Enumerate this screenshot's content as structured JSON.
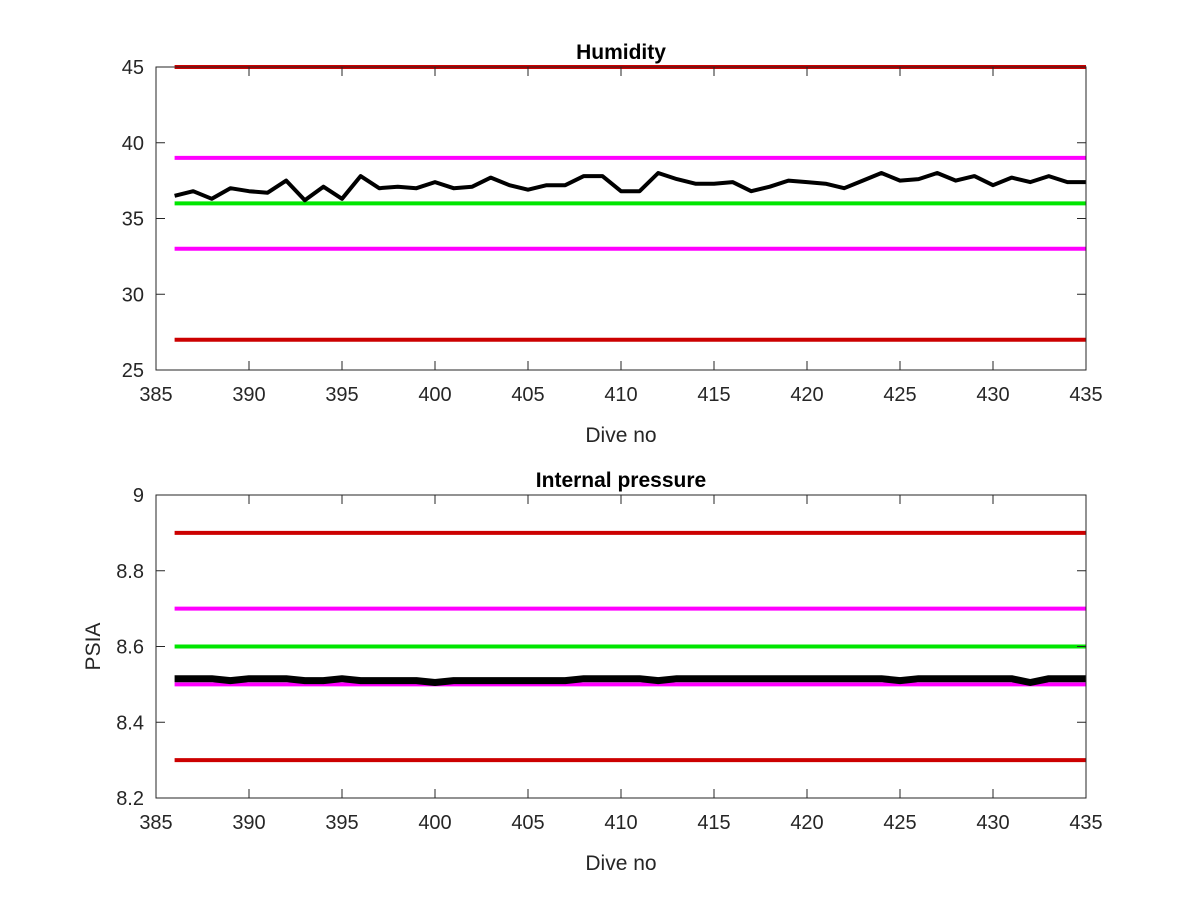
{
  "chart_data": [
    {
      "type": "line",
      "title": "Humidity",
      "xlabel": "Dive no",
      "ylabel": "",
      "xlim": [
        385,
        435
      ],
      "ylim": [
        25,
        45
      ],
      "xticks": [
        385,
        390,
        395,
        400,
        405,
        410,
        415,
        420,
        425,
        430,
        435
      ],
      "yticks": [
        25,
        30,
        35,
        40,
        45
      ],
      "grid": false,
      "box": true,
      "reference_lines": [
        {
          "y": 45,
          "color": "#cc0000"
        },
        {
          "y": 39,
          "color": "#ff00ff"
        },
        {
          "y": 36,
          "color": "#00e600"
        },
        {
          "y": 33,
          "color": "#ff00ff"
        },
        {
          "y": 27,
          "color": "#cc0000"
        }
      ],
      "series": [
        {
          "color": "#000000",
          "x": [
            386,
            387,
            388,
            389,
            390,
            391,
            392,
            393,
            394,
            395,
            396,
            397,
            398,
            399,
            400,
            401,
            402,
            403,
            404,
            405,
            406,
            407,
            408,
            409,
            410,
            411,
            412,
            413,
            414,
            415,
            416,
            417,
            418,
            419,
            420,
            421,
            422,
            423,
            424,
            425,
            426,
            427,
            428,
            429,
            430,
            431,
            432,
            433,
            434,
            435
          ],
          "values": [
            36.5,
            36.8,
            36.3,
            37.0,
            36.8,
            36.7,
            37.5,
            36.2,
            37.1,
            36.3,
            37.8,
            37.0,
            37.1,
            37.0,
            37.4,
            37.0,
            37.1,
            37.7,
            37.2,
            36.9,
            37.2,
            37.2,
            37.8,
            37.8,
            36.8,
            36.8,
            38.0,
            37.6,
            37.3,
            37.3,
            37.4,
            36.8,
            37.1,
            37.5,
            37.4,
            37.3,
            37.0,
            37.5,
            38.0,
            37.5,
            37.6,
            38.0,
            37.5,
            37.8,
            37.2,
            37.7,
            37.4,
            37.8,
            37.4,
            37.4
          ]
        }
      ]
    },
    {
      "type": "line",
      "title": "Internal pressure",
      "xlabel": "Dive no",
      "ylabel": "PSIA",
      "xlim": [
        385,
        435
      ],
      "ylim": [
        8.2,
        9
      ],
      "xticks": [
        385,
        390,
        395,
        400,
        405,
        410,
        415,
        420,
        425,
        430,
        435
      ],
      "yticks": [
        "8.2",
        "8.4",
        "8.6",
        "8.8",
        "9"
      ],
      "grid": false,
      "box": true,
      "reference_lines": [
        {
          "y": 8.9,
          "color": "#cc0000"
        },
        {
          "y": 8.7,
          "color": "#ff00ff"
        },
        {
          "y": 8.6,
          "color": "#00e600"
        },
        {
          "y": 8.5,
          "color": "#ff00ff"
        },
        {
          "y": 8.3,
          "color": "#cc0000"
        }
      ],
      "series": [
        {
          "color": "#000000",
          "x": [
            386,
            387,
            388,
            389,
            390,
            391,
            392,
            393,
            394,
            395,
            396,
            397,
            398,
            399,
            400,
            401,
            402,
            403,
            404,
            405,
            406,
            407,
            408,
            409,
            410,
            411,
            412,
            413,
            414,
            415,
            416,
            417,
            418,
            419,
            420,
            421,
            422,
            423,
            424,
            425,
            426,
            427,
            428,
            429,
            430,
            431,
            432,
            433,
            434,
            435
          ],
          "values": [
            8.515,
            8.515,
            8.515,
            8.51,
            8.515,
            8.515,
            8.515,
            8.51,
            8.51,
            8.515,
            8.51,
            8.51,
            8.51,
            8.51,
            8.505,
            8.51,
            8.51,
            8.51,
            8.51,
            8.51,
            8.51,
            8.51,
            8.515,
            8.515,
            8.515,
            8.515,
            8.51,
            8.515,
            8.515,
            8.515,
            8.515,
            8.515,
            8.515,
            8.515,
            8.515,
            8.515,
            8.515,
            8.515,
            8.515,
            8.51,
            8.515,
            8.515,
            8.515,
            8.515,
            8.515,
            8.515,
            8.505,
            8.515,
            8.515,
            8.515
          ]
        }
      ]
    }
  ]
}
